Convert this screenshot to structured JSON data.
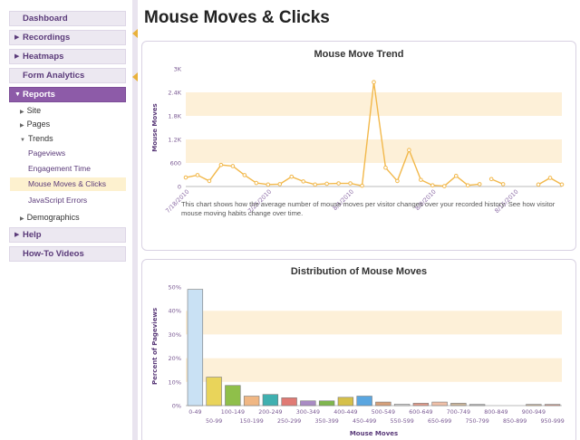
{
  "sidebar": {
    "dashboard": "Dashboard",
    "recordings": "Recordings",
    "heatmaps": "Heatmaps",
    "form_analytics": "Form Analytics",
    "reports": "Reports",
    "site": "Site",
    "pages": "Pages",
    "trends": "Trends",
    "pageviews": "Pageviews",
    "engagement_time": "Engagement Time",
    "mouse_moves_clicks": "Mouse Moves & Clicks",
    "javascript_errors": "JavaScript Errors",
    "demographics": "Demographics",
    "help": "Help",
    "howto_videos": "How-To Videos"
  },
  "page": {
    "title": "Mouse Moves & Clicks"
  },
  "trend_panel": {
    "title": "Mouse Move Trend",
    "description": "This chart shows how the average number of mouse moves per visitor changes over your recorded history. See how visitor mouse moving habits change over time."
  },
  "dist_panel": {
    "title": "Distribution of Mouse Moves"
  },
  "colors": {
    "accent": "#8d5ba8",
    "line": "#f2b84b",
    "band": "#fdf0d8"
  },
  "chart_data": [
    {
      "type": "line",
      "title": "Mouse Move Trend",
      "xlabel": "",
      "ylabel": "Mouse Moves",
      "ylim": [
        0,
        3000
      ],
      "yticks": [
        "0",
        "600",
        "1.2K",
        "1.8K",
        "2.4K",
        "3K"
      ],
      "xticks": [
        "7/18/2010",
        "7/25/2010",
        "8/1/2010",
        "8/8/2010",
        "8/15/2010"
      ],
      "series": [
        {
          "name": "segment1",
          "x": [
            0,
            1,
            2,
            3,
            4,
            5,
            6,
            7,
            8,
            9,
            10,
            11,
            12,
            13,
            14,
            15,
            16,
            17,
            18,
            19,
            20,
            21,
            22,
            23,
            24,
            25
          ],
          "values": [
            230,
            290,
            140,
            550,
            520,
            290,
            90,
            50,
            60,
            250,
            130,
            50,
            70,
            80,
            80,
            20,
            2660,
            480,
            140,
            930,
            170,
            30,
            10,
            270,
            30,
            60
          ]
        },
        {
          "name": "segment2",
          "x": [
            26,
            27
          ],
          "values": [
            190,
            60
          ]
        },
        {
          "name": "segment3",
          "x": [
            30,
            31,
            32
          ],
          "values": [
            50,
            220,
            50
          ]
        }
      ]
    },
    {
      "type": "bar",
      "title": "Distribution of Mouse Moves",
      "xlabel": "Mouse Moves",
      "ylabel": "Percent of Pageviews",
      "ylim": [
        0,
        50
      ],
      "yticks": [
        "0%",
        "10%",
        "20%",
        "30%",
        "40%",
        "50%"
      ],
      "categories": [
        "0-49",
        "50-99",
        "100-149",
        "150-199",
        "200-249",
        "250-299",
        "300-349",
        "350-399",
        "400-449",
        "450-499",
        "500-549",
        "550-599",
        "600-649",
        "650-699",
        "700-749",
        "750-799",
        "800-849",
        "850-899",
        "900-949",
        "950-999"
      ],
      "values": [
        49,
        12,
        8.5,
        4,
        4.7,
        3.3,
        2,
        2,
        3.5,
        4,
        1.5,
        0.6,
        1,
        1.5,
        1,
        0.5,
        0,
        0,
        0.5,
        0.5
      ],
      "bar_colors": [
        "#c9e1f4",
        "#e9d45a",
        "#8fbf4a",
        "#f0b784",
        "#3fb0b0",
        "#e07a74",
        "#a98bc4",
        "#7fb64e",
        "#d5c04a",
        "#5aa6e0",
        "#d6a07a",
        "#dddddd",
        "#e29b8a",
        "#f0c0a8",
        "#cdb79c",
        "#bbbbbb",
        "#dddddd",
        "#dddddd",
        "#d0b89a",
        "#d49a8a"
      ]
    }
  ]
}
